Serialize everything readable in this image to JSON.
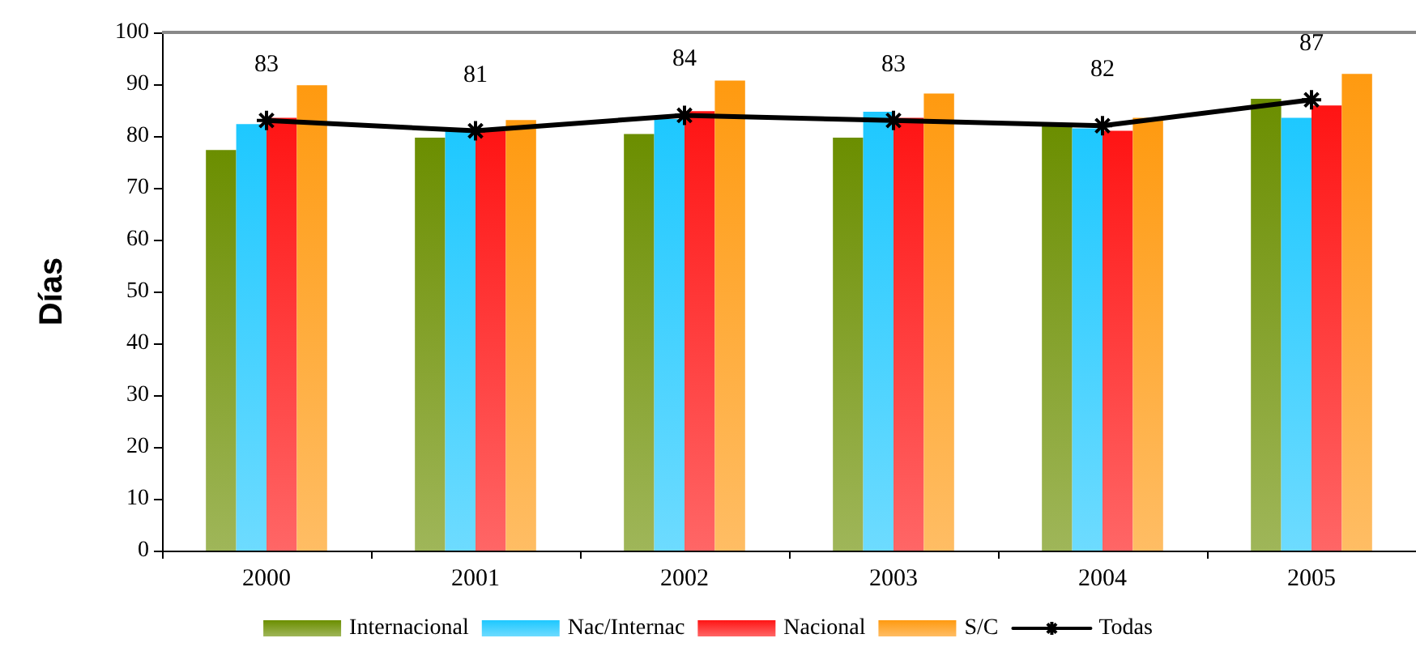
{
  "chart_data": {
    "type": "bar",
    "ylabel": "Días",
    "categories": [
      "2000",
      "2001",
      "2002",
      "2003",
      "2004",
      "2005"
    ],
    "series": [
      {
        "name": "Internacional",
        "color": "#6b8e00",
        "values": [
          77.3,
          79.7,
          80.4,
          79.7,
          82.3,
          87.2
        ]
      },
      {
        "name": "Nac/Internac",
        "color": "#1ec8ff",
        "values": [
          82.3,
          81,
          83.3,
          84.7,
          81.5,
          83.5
        ]
      },
      {
        "name": "Nacional",
        "color": "#ff1414",
        "values": [
          83.5,
          81,
          84.8,
          83.5,
          81,
          85.9
        ]
      },
      {
        "name": "S/C",
        "color": "#ff9a10",
        "values": [
          89.8,
          83.1,
          90.7,
          88.2,
          83.5,
          92
        ]
      },
      {
        "name": "Todas",
        "type": "line",
        "color": "#000000",
        "marker": "cross",
        "values": [
          83,
          81,
          84,
          83,
          82,
          87
        ],
        "value_labels": [
          "83",
          "81",
          "84",
          "83",
          "82",
          "87"
        ]
      }
    ],
    "ylim": [
      0,
      100
    ],
    "yticks": [
      0,
      10,
      20,
      30,
      40,
      50,
      60,
      70,
      80,
      90,
      100
    ],
    "grid": false,
    "legend": "bottom"
  }
}
